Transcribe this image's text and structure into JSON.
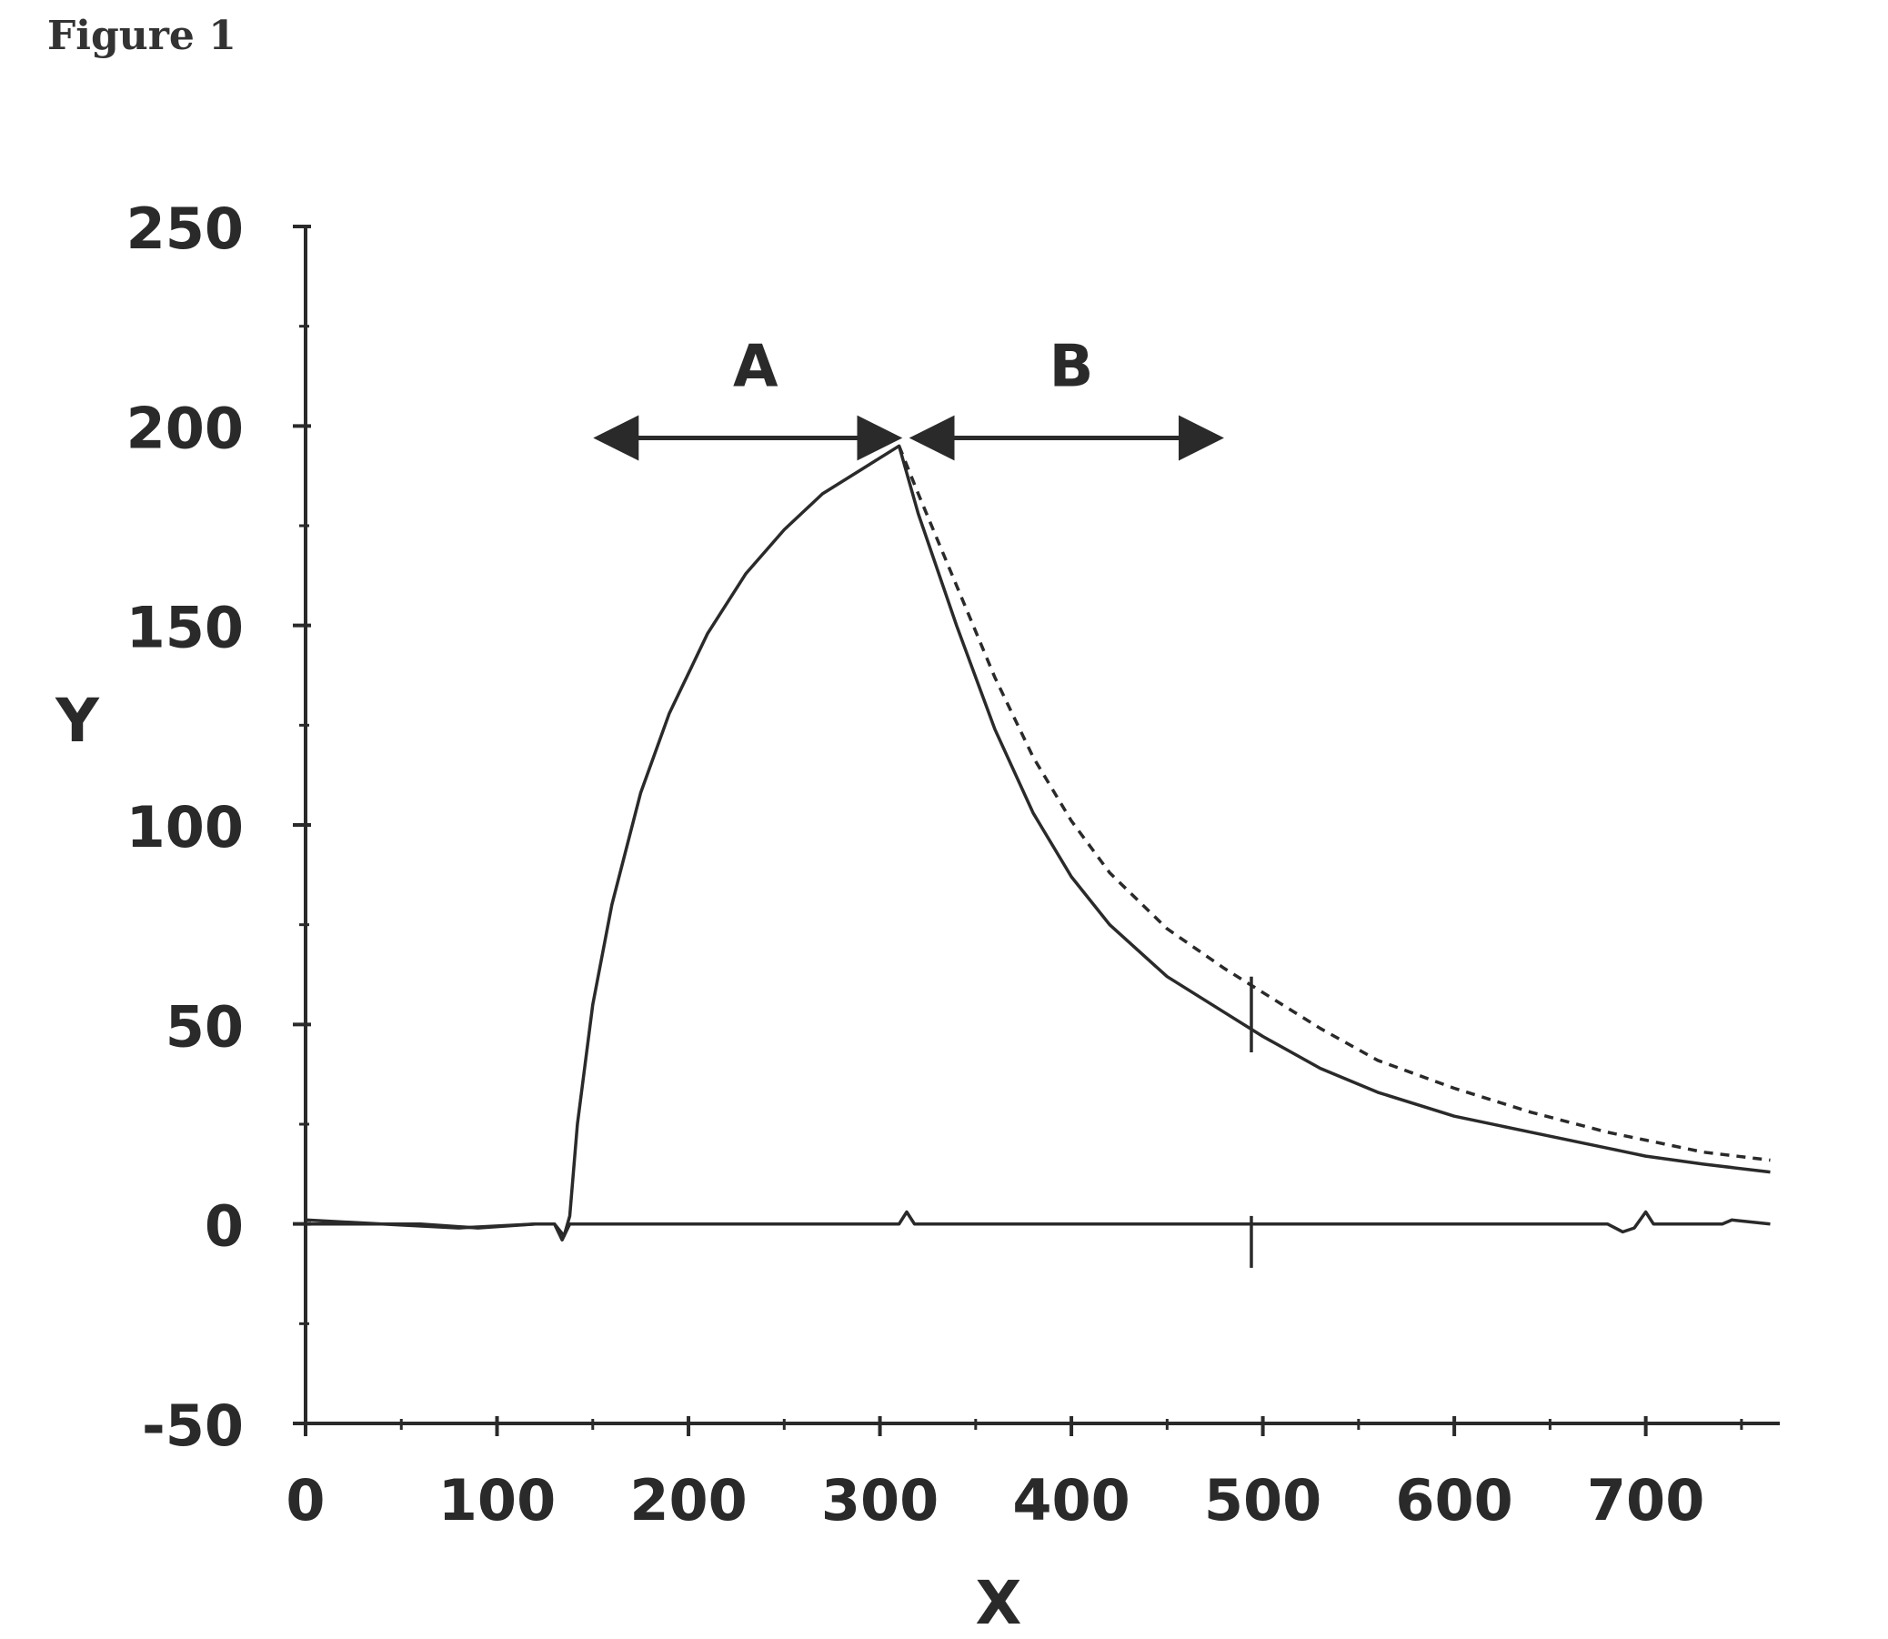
{
  "figure_label": "Figure 1",
  "chart_data": {
    "type": "line",
    "title": "",
    "xlabel": "X",
    "ylabel": "Y",
    "xlim": [
      0,
      770
    ],
    "ylim": [
      -50,
      250
    ],
    "x_ticks": [
      0,
      100,
      200,
      300,
      400,
      500,
      600,
      700
    ],
    "y_ticks": [
      -50,
      0,
      50,
      100,
      150,
      200,
      250
    ],
    "grid": false,
    "legend": "none",
    "annotations": [
      {
        "label": "A",
        "from_x": 155,
        "to_x": 307,
        "y": 197,
        "label_x": 235,
        "label_y": 210
      },
      {
        "label": "B",
        "from_x": 320,
        "to_x": 475,
        "y": 197,
        "label_x": 400,
        "label_y": 210
      }
    ],
    "series": [
      {
        "style": "solid",
        "color": "#2a2a2a",
        "points": [
          [
            0,
            0
          ],
          [
            30,
            0
          ],
          [
            60,
            0
          ],
          [
            90,
            -1
          ],
          [
            120,
            0
          ],
          [
            130,
            0
          ],
          [
            135,
            -3
          ],
          [
            138,
            2
          ],
          [
            142,
            25
          ],
          [
            150,
            55
          ],
          [
            160,
            80
          ],
          [
            175,
            108
          ],
          [
            190,
            128
          ],
          [
            210,
            148
          ],
          [
            230,
            163
          ],
          [
            250,
            174
          ],
          [
            270,
            183
          ],
          [
            290,
            189
          ],
          [
            310,
            195
          ],
          [
            320,
            178
          ],
          [
            340,
            150
          ],
          [
            360,
            124
          ],
          [
            380,
            103
          ],
          [
            400,
            87
          ],
          [
            420,
            75
          ],
          [
            450,
            62
          ],
          [
            480,
            53
          ],
          [
            500,
            47
          ],
          [
            530,
            39
          ],
          [
            560,
            33
          ],
          [
            600,
            27
          ],
          [
            640,
            23
          ],
          [
            680,
            19
          ],
          [
            700,
            17
          ],
          [
            730,
            15
          ],
          [
            765,
            13
          ]
        ]
      },
      {
        "style": "dashed",
        "color": "#2a2a2a",
        "points": [
          [
            310,
            195
          ],
          [
            320,
            183
          ],
          [
            340,
            160
          ],
          [
            360,
            137
          ],
          [
            380,
            117
          ],
          [
            400,
            101
          ],
          [
            420,
            88
          ],
          [
            450,
            74
          ],
          [
            480,
            64
          ],
          [
            500,
            58
          ],
          [
            530,
            49
          ],
          [
            560,
            41
          ],
          [
            600,
            34
          ],
          [
            640,
            28
          ],
          [
            680,
            23
          ],
          [
            700,
            21
          ],
          [
            730,
            18
          ],
          [
            765,
            16
          ]
        ]
      },
      {
        "style": "solid",
        "color": "#2a2a2a",
        "points": [
          [
            0,
            1
          ],
          [
            40,
            0
          ],
          [
            80,
            -1
          ],
          [
            120,
            0
          ],
          [
            130,
            0
          ],
          [
            134,
            -4
          ],
          [
            138,
            0
          ],
          [
            200,
            0
          ],
          [
            300,
            0
          ],
          [
            310,
            0
          ],
          [
            314,
            3
          ],
          [
            318,
            0
          ],
          [
            400,
            0
          ],
          [
            490,
            0
          ],
          [
            600,
            0
          ],
          [
            680,
            0
          ],
          [
            688,
            -2
          ],
          [
            694,
            -1
          ],
          [
            700,
            3
          ],
          [
            704,
            0
          ],
          [
            740,
            0
          ],
          [
            745,
            1
          ],
          [
            765,
            0
          ]
        ]
      }
    ],
    "glitches": [
      {
        "x": 494,
        "y_top": 62,
        "y_bottom": 43
      },
      {
        "x": 494,
        "y_top": 2,
        "y_bottom": -11
      }
    ]
  }
}
